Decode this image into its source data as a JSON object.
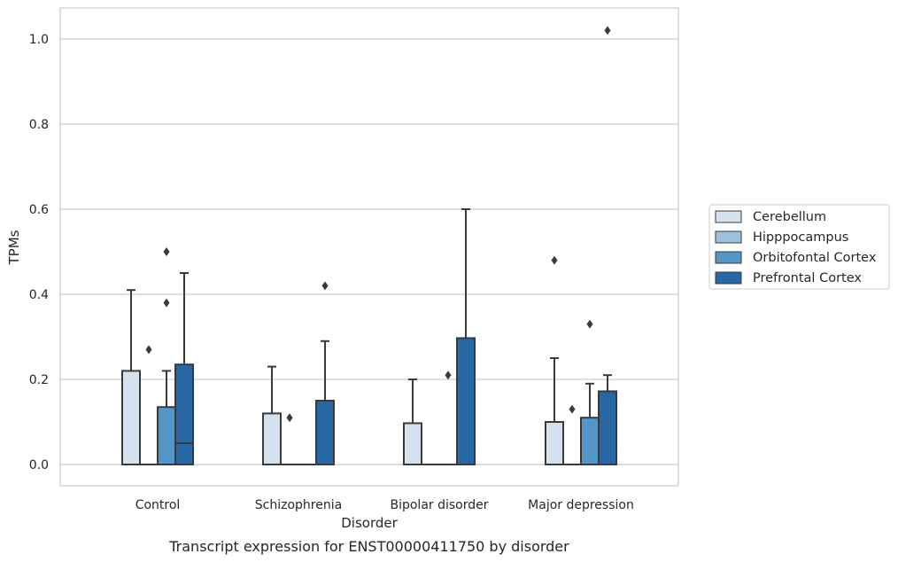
{
  "chart_data": {
    "type": "box",
    "xlabel": "Disorder",
    "ylabel": "TPMs",
    "caption": "Transcript expression for ENST00000411750 by disorder",
    "ylim": [
      -0.05,
      1.07
    ],
    "yticks": [
      0.0,
      0.2,
      0.4,
      0.6,
      0.8,
      1.0
    ],
    "ytick_labels": [
      "0.0",
      "0.2",
      "0.4",
      "0.6",
      "0.8",
      "1.0"
    ],
    "grid": "horizontal",
    "legend_position": "right",
    "categories": [
      "Control",
      "Schizophrenia",
      "Bipolar disorder",
      "Major depression"
    ],
    "series": [
      {
        "name": "Cerebellum",
        "color": "#d4e2f0",
        "boxes": [
          {
            "q1": 0.0,
            "median": 0.0,
            "q3": 0.22,
            "whisker_low": 0.0,
            "whisker_high": 0.41,
            "outliers": []
          },
          {
            "q1": 0.0,
            "median": 0.0,
            "q3": 0.12,
            "whisker_low": 0.0,
            "whisker_high": 0.23,
            "outliers": []
          },
          {
            "q1": 0.0,
            "median": 0.0,
            "q3": 0.097,
            "whisker_low": 0.0,
            "whisker_high": 0.2,
            "outliers": []
          },
          {
            "q1": 0.0,
            "median": 0.0,
            "q3": 0.1,
            "whisker_low": 0.0,
            "whisker_high": 0.25,
            "outliers": [
              0.48
            ]
          }
        ]
      },
      {
        "name": "Hipppocampus",
        "color": "#9ac4de",
        "boxes": [
          {
            "q1": 0.0,
            "median": 0.0,
            "q3": 0.0,
            "whisker_low": 0.0,
            "whisker_high": 0.0,
            "outliers": [
              0.27
            ]
          },
          {
            "q1": 0.0,
            "median": 0.0,
            "q3": 0.0,
            "whisker_low": 0.0,
            "whisker_high": 0.0,
            "outliers": [
              0.11
            ]
          },
          {
            "q1": 0.0,
            "median": 0.0,
            "q3": 0.0,
            "whisker_low": 0.0,
            "whisker_high": 0.0,
            "outliers": []
          },
          {
            "q1": 0.0,
            "median": 0.0,
            "q3": 0.0,
            "whisker_low": 0.0,
            "whisker_high": 0.0,
            "outliers": [
              0.13
            ]
          }
        ]
      },
      {
        "name": "Orbitofontal Cortex",
        "color": "#5496c6",
        "boxes": [
          {
            "q1": 0.0,
            "median": 0.0,
            "q3": 0.135,
            "whisker_low": 0.0,
            "whisker_high": 0.22,
            "outliers": [
              0.38,
              0.5
            ]
          },
          {
            "q1": 0.0,
            "median": 0.0,
            "q3": 0.0,
            "whisker_low": 0.0,
            "whisker_high": 0.0,
            "outliers": []
          },
          {
            "q1": 0.0,
            "median": 0.0,
            "q3": 0.0,
            "whisker_low": 0.0,
            "whisker_high": 0.0,
            "outliers": [
              0.21
            ]
          },
          {
            "q1": 0.0,
            "median": 0.0,
            "q3": 0.11,
            "whisker_low": 0.0,
            "whisker_high": 0.19,
            "outliers": [
              0.33
            ]
          }
        ]
      },
      {
        "name": "Prefrontal Cortex",
        "color": "#2767a4",
        "boxes": [
          {
            "q1": 0.0,
            "median": 0.05,
            "q3": 0.235,
            "whisker_low": 0.0,
            "whisker_high": 0.45,
            "outliers": []
          },
          {
            "q1": 0.0,
            "median": 0.0,
            "q3": 0.15,
            "whisker_low": 0.0,
            "whisker_high": 0.29,
            "outliers": [
              0.42
            ]
          },
          {
            "q1": 0.0,
            "median": 0.0,
            "q3": 0.297,
            "whisker_low": 0.0,
            "whisker_high": 0.6,
            "outliers": []
          },
          {
            "q1": 0.0,
            "median": 0.0,
            "q3": 0.172,
            "whisker_low": 0.0,
            "whisker_high": 0.21,
            "outliers": [
              1.02
            ]
          }
        ]
      }
    ]
  }
}
